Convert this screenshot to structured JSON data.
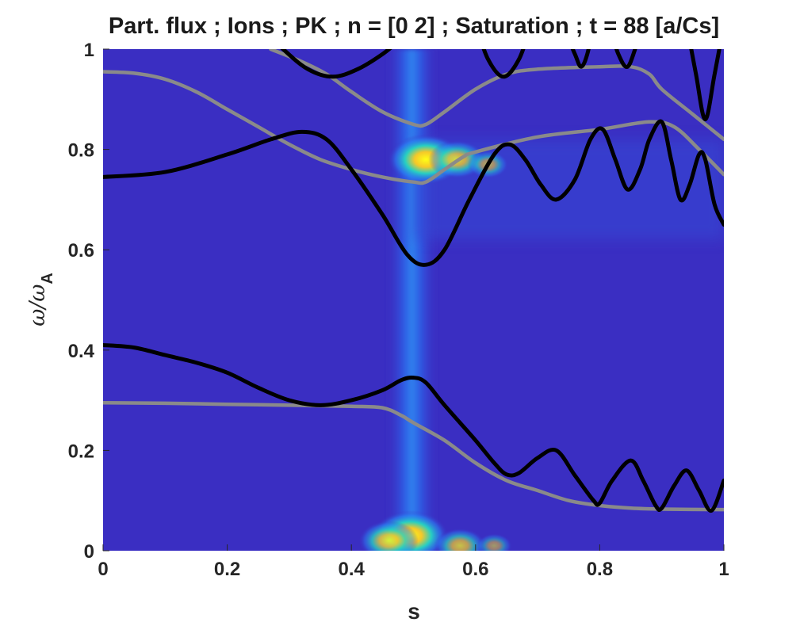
{
  "title": "Part. flux ; Ions ; PK ; n = [0 2] ; Saturation ; t = 88 [a/Cs]",
  "colors": {
    "background": "#3a2ec2",
    "hot_low": "#1f6cf5",
    "hot_mid": "#22c4d8",
    "hot_high": "#f5d726",
    "hot_peak": "#ffff16",
    "black_curve": "#000000",
    "gray_curve": "#8a8a8a"
  },
  "chart_data": {
    "type": "heatmap",
    "title": "Part. flux ; Ions ; PK ; n = [0 2] ; Saturation ; t = 88 [a/Cs]",
    "xlabel": "s",
    "ylabel": "ω/ω",
    "ylabel_sub": "A",
    "xlim": [
      0,
      1
    ],
    "ylim": [
      0,
      1
    ],
    "x_ticks": [
      "0",
      "0.2",
      "0.4",
      "0.6",
      "0.8",
      "1"
    ],
    "x_tick_values": [
      0,
      0.2,
      0.4,
      0.6,
      0.8,
      1
    ],
    "y_ticks": [
      "0",
      "0.2",
      "0.4",
      "0.6",
      "0.8",
      "1"
    ],
    "y_tick_values": [
      0,
      0.2,
      0.4,
      0.6,
      0.8,
      1
    ],
    "grid": false,
    "colormap": "parula",
    "hotspots": [
      {
        "s": 0.52,
        "w": 0.78,
        "level": 1.0
      },
      {
        "s": 0.57,
        "w": 0.78,
        "level": 0.65
      },
      {
        "s": 0.62,
        "w": 0.77,
        "level": 0.35
      },
      {
        "s": 0.495,
        "w": 0.03,
        "level": 1.0
      },
      {
        "s": 0.46,
        "w": 0.02,
        "level": 0.7
      },
      {
        "s": 0.575,
        "w": 0.01,
        "level": 0.55
      },
      {
        "s": 0.63,
        "w": 0.01,
        "level": 0.25
      }
    ],
    "series": [
      {
        "style": "black",
        "points": [
          [
            0,
            0.745
          ],
          [
            0.1,
            0.755
          ],
          [
            0.2,
            0.79
          ],
          [
            0.27,
            0.82
          ],
          [
            0.32,
            0.835
          ],
          [
            0.36,
            0.82
          ],
          [
            0.4,
            0.76
          ],
          [
            0.45,
            0.67
          ],
          [
            0.49,
            0.59
          ],
          [
            0.52,
            0.57
          ],
          [
            0.55,
            0.6
          ],
          [
            0.59,
            0.7
          ],
          [
            0.63,
            0.79
          ],
          [
            0.655,
            0.81
          ],
          [
            0.68,
            0.78
          ],
          [
            0.705,
            0.73
          ],
          [
            0.73,
            0.7
          ],
          [
            0.76,
            0.74
          ],
          [
            0.785,
            0.82
          ],
          [
            0.805,
            0.84
          ],
          [
            0.825,
            0.78
          ],
          [
            0.845,
            0.72
          ],
          [
            0.865,
            0.76
          ],
          [
            0.88,
            0.82
          ],
          [
            0.9,
            0.855
          ],
          [
            0.915,
            0.78
          ],
          [
            0.93,
            0.7
          ],
          [
            0.945,
            0.73
          ],
          [
            0.96,
            0.79
          ],
          [
            0.97,
            0.78
          ],
          [
            0.985,
            0.69
          ],
          [
            1.0,
            0.65
          ]
        ]
      },
      {
        "style": "black",
        "points": [
          [
            0.25,
            1.05
          ],
          [
            0.29,
            1.0
          ],
          [
            0.33,
            0.96
          ],
          [
            0.37,
            0.945
          ],
          [
            0.41,
            0.96
          ],
          [
            0.45,
            0.99
          ],
          [
            0.48,
            1.02
          ]
        ]
      },
      {
        "style": "black",
        "points": [
          [
            0.6,
            1.05
          ],
          [
            0.62,
            0.98
          ],
          [
            0.645,
            0.945
          ],
          [
            0.67,
            0.98
          ],
          [
            0.69,
            1.05
          ]
        ]
      },
      {
        "style": "black",
        "points": [
          [
            0.74,
            1.05
          ],
          [
            0.76,
            0.99
          ],
          [
            0.77,
            0.965
          ],
          [
            0.78,
            0.99
          ],
          [
            0.79,
            1.05
          ]
        ]
      },
      {
        "style": "black",
        "points": [
          [
            0.815,
            1.05
          ],
          [
            0.83,
            0.99
          ],
          [
            0.845,
            0.965
          ],
          [
            0.86,
            1.01
          ],
          [
            0.875,
            1.05
          ]
        ]
      },
      {
        "style": "black",
        "points": [
          [
            0.94,
            1.05
          ],
          [
            0.955,
            0.95
          ],
          [
            0.97,
            0.86
          ],
          [
            0.985,
            0.95
          ],
          [
            1.0,
            1.05
          ]
        ]
      },
      {
        "style": "gray",
        "points": [
          [
            0,
            0.955
          ],
          [
            0.05,
            0.952
          ],
          [
            0.1,
            0.94
          ],
          [
            0.15,
            0.915
          ],
          [
            0.2,
            0.88
          ],
          [
            0.25,
            0.845
          ],
          [
            0.3,
            0.81
          ],
          [
            0.35,
            0.78
          ],
          [
            0.4,
            0.76
          ],
          [
            0.45,
            0.745
          ],
          [
            0.5,
            0.735
          ],
          [
            0.52,
            0.735
          ],
          [
            0.55,
            0.76
          ],
          [
            0.58,
            0.785
          ],
          [
            0.6,
            0.795
          ],
          [
            0.7,
            0.825
          ],
          [
            0.8,
            0.84
          ],
          [
            0.88,
            0.855
          ],
          [
            0.92,
            0.845
          ],
          [
            0.96,
            0.8
          ],
          [
            1.0,
            0.75
          ]
        ]
      },
      {
        "style": "gray",
        "points": [
          [
            0.27,
            1.0
          ],
          [
            0.32,
            0.975
          ],
          [
            0.36,
            0.95
          ],
          [
            0.4,
            0.915
          ],
          [
            0.45,
            0.875
          ],
          [
            0.5,
            0.85
          ],
          [
            0.52,
            0.85
          ],
          [
            0.55,
            0.875
          ],
          [
            0.6,
            0.92
          ],
          [
            0.65,
            0.95
          ],
          [
            0.7,
            0.96
          ],
          [
            0.8,
            0.965
          ],
          [
            0.85,
            0.965
          ],
          [
            0.88,
            0.95
          ],
          [
            0.9,
            0.92
          ],
          [
            0.95,
            0.87
          ],
          [
            1.0,
            0.82
          ]
        ]
      },
      {
        "style": "black",
        "points": [
          [
            0,
            0.41
          ],
          [
            0.05,
            0.405
          ],
          [
            0.1,
            0.39
          ],
          [
            0.15,
            0.375
          ],
          [
            0.2,
            0.355
          ],
          [
            0.25,
            0.325
          ],
          [
            0.3,
            0.3
          ],
          [
            0.35,
            0.29
          ],
          [
            0.4,
            0.3
          ],
          [
            0.45,
            0.32
          ],
          [
            0.48,
            0.34
          ],
          [
            0.5,
            0.345
          ],
          [
            0.52,
            0.335
          ],
          [
            0.55,
            0.29
          ],
          [
            0.6,
            0.22
          ],
          [
            0.63,
            0.175
          ],
          [
            0.65,
            0.152
          ],
          [
            0.67,
            0.155
          ],
          [
            0.7,
            0.185
          ],
          [
            0.73,
            0.2
          ],
          [
            0.76,
            0.15
          ],
          [
            0.79,
            0.1
          ],
          [
            0.8,
            0.095
          ],
          [
            0.82,
            0.14
          ],
          [
            0.85,
            0.18
          ],
          [
            0.87,
            0.14
          ],
          [
            0.89,
            0.09
          ],
          [
            0.9,
            0.085
          ],
          [
            0.92,
            0.13
          ],
          [
            0.94,
            0.16
          ],
          [
            0.96,
            0.12
          ],
          [
            0.98,
            0.08
          ],
          [
            1.0,
            0.14
          ]
        ]
      },
      {
        "style": "gray",
        "points": [
          [
            0,
            0.295
          ],
          [
            0.1,
            0.294
          ],
          [
            0.2,
            0.292
          ],
          [
            0.3,
            0.29
          ],
          [
            0.4,
            0.288
          ],
          [
            0.45,
            0.285
          ],
          [
            0.48,
            0.27
          ],
          [
            0.5,
            0.255
          ],
          [
            0.55,
            0.22
          ],
          [
            0.6,
            0.175
          ],
          [
            0.65,
            0.14
          ],
          [
            0.7,
            0.12
          ],
          [
            0.75,
            0.1
          ],
          [
            0.8,
            0.09
          ],
          [
            0.85,
            0.085
          ],
          [
            0.9,
            0.083
          ],
          [
            1.0,
            0.082
          ]
        ]
      }
    ]
  }
}
